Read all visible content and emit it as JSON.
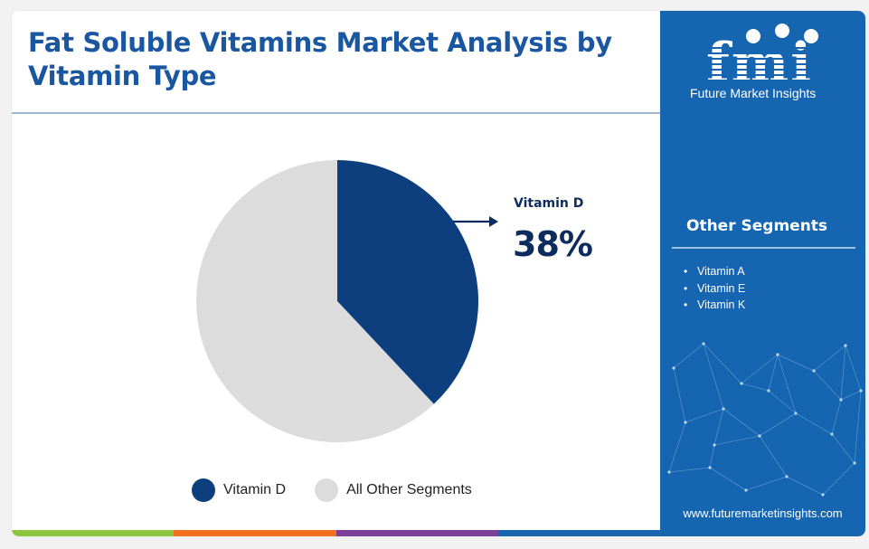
{
  "title": "Fat Soluble Vitamins Market Analysis by Vitamin Type",
  "chart_data": {
    "type": "pie",
    "title": "Fat Soluble Vitamins Market Analysis by Vitamin Type",
    "categories": [
      "Vitamin D",
      "All Other Segments"
    ],
    "values": [
      38,
      62
    ],
    "unit": "%",
    "colors": [
      "#0d3f7f",
      "#dcdcdc"
    ],
    "legend_placement": "bottom",
    "annotation": {
      "label": "Vitamin D",
      "value": "38%"
    }
  },
  "legend": [
    {
      "label": "Vitamin D",
      "color": "#0d3f7f"
    },
    {
      "label": "All Other Segments",
      "color": "#dcdcdc"
    }
  ],
  "sidebar": {
    "logo_text": "fmi",
    "logo_subtitle": "Future Market Insights",
    "segments_title": "Other Segments",
    "segments": [
      "Vitamin A",
      "Vitamin E",
      "Vitamin K"
    ],
    "website": "www.futuremarketinsights.com",
    "background_color": "#1565b0"
  },
  "bottom_bar_colors": [
    "#8dc63f",
    "#f37021",
    "#7b3f98",
    "#1565b0"
  ]
}
